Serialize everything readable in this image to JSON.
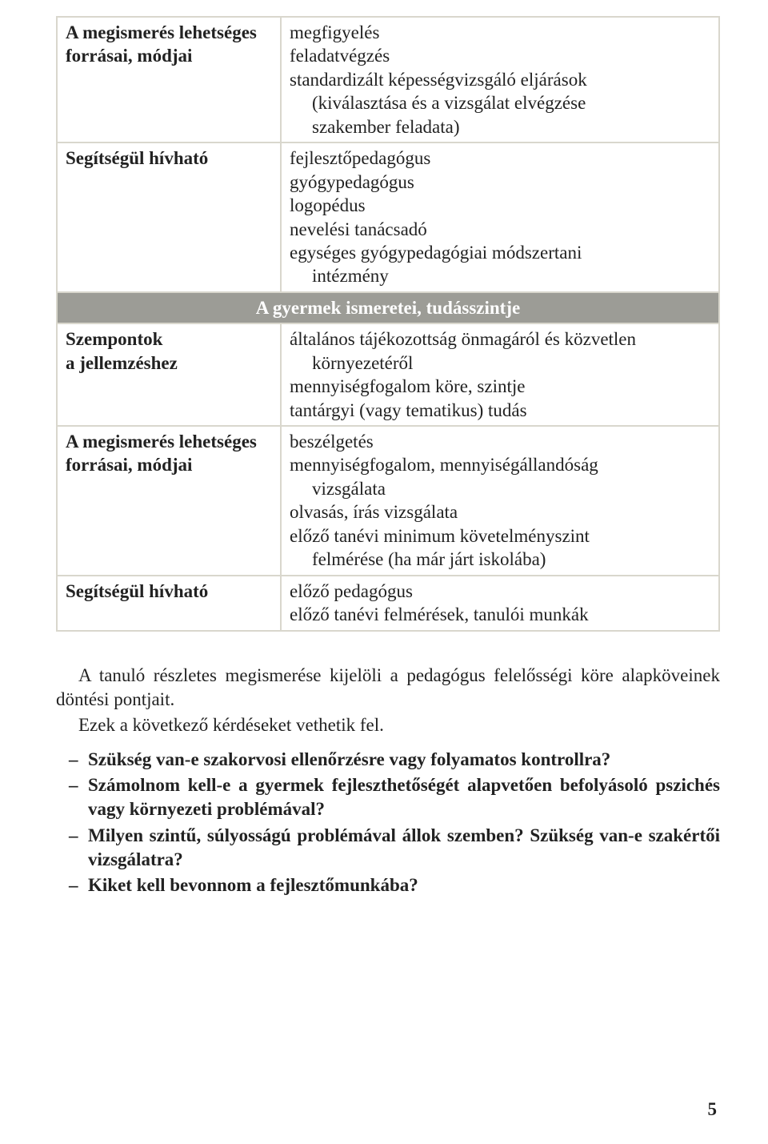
{
  "table": {
    "rows": [
      {
        "label": "A megismerés lehetséges forrásai, módjai",
        "content": [
          {
            "t": "line",
            "v": "megfigyelés"
          },
          {
            "t": "line",
            "v": "feladatvégzés"
          },
          {
            "t": "line",
            "v": "standardizált képességvizsgáló eljárások"
          },
          {
            "t": "indent",
            "v": "(kiválasztása és a vizsgálat elvégzése"
          },
          {
            "t": "indent",
            "v": "szakember feladata)"
          }
        ]
      },
      {
        "label": "Segítségül hívható",
        "content": [
          {
            "t": "line",
            "v": "fejlesztőpedagógus"
          },
          {
            "t": "line",
            "v": "gyógypedagógus"
          },
          {
            "t": "line",
            "v": "logopédus"
          },
          {
            "t": "line",
            "v": "nevelési tanácsadó"
          },
          {
            "t": "line",
            "v": "egységes gyógypedagógiai módszertani"
          },
          {
            "t": "indent",
            "v": "intézmény"
          }
        ]
      },
      {
        "section": "A gyermek ismeretei, tudásszintje"
      },
      {
        "label": "Szempontok\na jellemzéshez",
        "content": [
          {
            "t": "line",
            "v": "általános tájékozottság önmagáról és közvetlen"
          },
          {
            "t": "indent",
            "v": "környezetéről"
          },
          {
            "t": "line",
            "v": "mennyiségfogalom köre, szintje"
          },
          {
            "t": "line",
            "v": "tantárgyi (vagy tematikus) tudás"
          }
        ]
      },
      {
        "label": "A megismerés lehetséges forrásai, módjai",
        "content": [
          {
            "t": "line",
            "v": "beszélgetés"
          },
          {
            "t": "line",
            "v": "mennyiségfogalom, mennyiségállandóság"
          },
          {
            "t": "indent",
            "v": "vizsgálata"
          },
          {
            "t": "line",
            "v": "olvasás, írás vizsgálata"
          },
          {
            "t": "line",
            "v": "előző tanévi minimum követelményszint"
          },
          {
            "t": "indent",
            "v": "felmérése (ha már járt iskolába)"
          }
        ]
      },
      {
        "label": "Segítségül hívható",
        "content": [
          {
            "t": "line",
            "v": "előző pedagógus"
          },
          {
            "t": "line",
            "v": "előző tanévi felmérések, tanulói munkák"
          }
        ]
      }
    ]
  },
  "paragraphs": {
    "p1": "A tanuló részletes megismerése kijelöli a pedagógus felelősségi köre alapköveinek döntési pontjait.",
    "p2": "Ezek a következő kérdéseket vethetik fel."
  },
  "bullets": [
    "Szükség van-e szakorvosi ellenőrzésre vagy folyamatos kontrollra?",
    "Számolnom kell-e a gyermek fejleszthetőségét alapvetően befolyásoló pszichés vagy környezeti problémával?",
    "Milyen szintű, súlyosságú problémával állok szemben? Szükség van-e szakértői vizsgálatra?",
    "Kiket kell bevonnom a fejlesztőmunkába?"
  ],
  "pageNumber": "5"
}
